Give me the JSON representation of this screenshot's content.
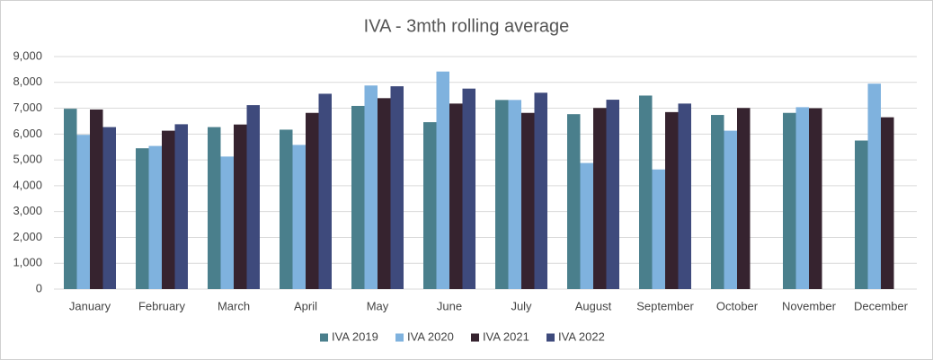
{
  "chart_data": {
    "type": "bar",
    "title": "IVA - 3mth rolling average",
    "categories": [
      "January",
      "February",
      "March",
      "April",
      "May",
      "June",
      "July",
      "August",
      "September",
      "October",
      "November",
      "December"
    ],
    "series": [
      {
        "name": "IVA 2019",
        "color": "#4a7f8c",
        "values": [
          6980,
          5450,
          6270,
          6170,
          7090,
          6460,
          7320,
          6770,
          7490,
          6740,
          6820,
          5750
        ]
      },
      {
        "name": "IVA 2020",
        "color": "#7fb2de",
        "values": [
          5970,
          5540,
          5130,
          5580,
          7880,
          8420,
          7320,
          4880,
          4630,
          6130,
          7040,
          7950
        ]
      },
      {
        "name": "IVA 2021",
        "color": "#36232f",
        "values": [
          6950,
          6130,
          6370,
          6820,
          7390,
          7180,
          6820,
          7010,
          6850,
          7010,
          7000,
          6650
        ]
      },
      {
        "name": "IVA 2022",
        "color": "#3e4a7c",
        "values": [
          6270,
          6380,
          7120,
          7560,
          7850,
          7760,
          7600,
          7330,
          7180,
          null,
          null,
          null
        ]
      }
    ],
    "ylim": [
      0,
      9000
    ],
    "yticks": [
      0,
      {
        "value": 1000,
        "label": "1,000"
      },
      {
        "value": 2000,
        "label": "2,000"
      },
      {
        "value": 3000,
        "label": "3,000"
      },
      {
        "value": 4000,
        "label": "4,000"
      },
      {
        "value": 5000,
        "label": "5,000"
      },
      {
        "value": 6000,
        "label": "6,000"
      },
      {
        "value": 7000,
        "label": "7,000"
      },
      {
        "value": 8000,
        "label": "8,000"
      },
      {
        "value": 9000,
        "label": "9,000"
      }
    ],
    "grid": true,
    "legend": "bottom"
  }
}
